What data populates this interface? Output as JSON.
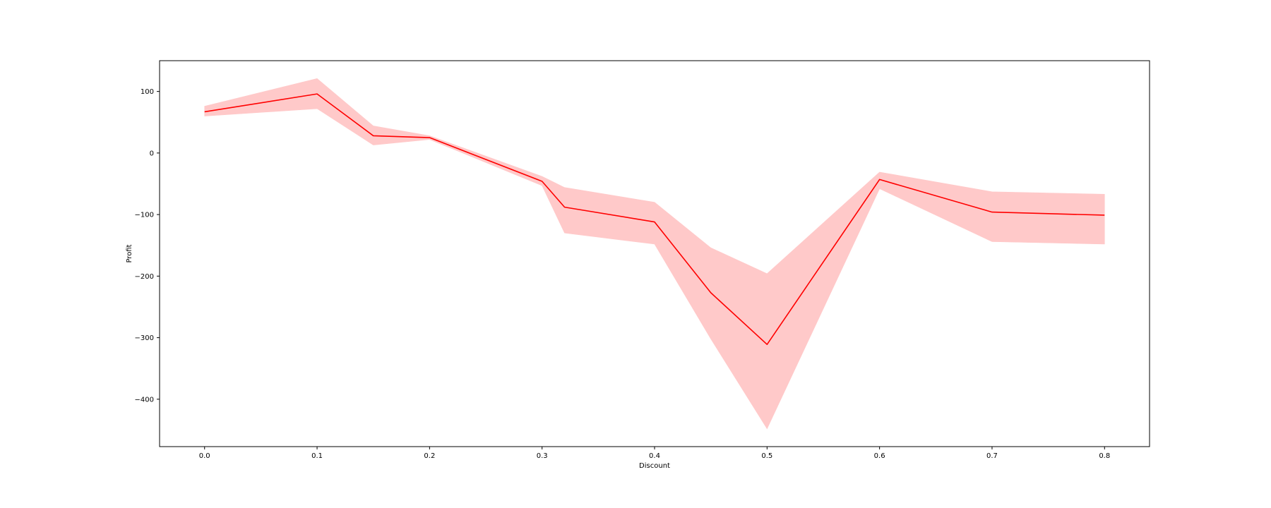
{
  "chart_data": {
    "type": "line",
    "title": "",
    "xlabel": "Discount",
    "ylabel": "Profit",
    "xlim": [
      -0.04,
      0.84
    ],
    "ylim": [
      -477,
      150
    ],
    "xticks": [
      0.0,
      0.1,
      0.2,
      0.3,
      0.4,
      0.5,
      0.6,
      0.7,
      0.8
    ],
    "xtick_labels": [
      "0.0",
      "0.1",
      "0.2",
      "0.3",
      "0.4",
      "0.5",
      "0.6",
      "0.7",
      "0.8"
    ],
    "yticks": [
      100,
      0,
      -100,
      -200,
      -300,
      -400
    ],
    "ytick_labels": [
      "100",
      "0",
      "−100",
      "−200",
      "−300",
      "−400"
    ],
    "grid": false,
    "legend": "none",
    "series": [
      {
        "line_color": "#ff0000",
        "band_color": "#ffc9c9",
        "x": [
          0.0,
          0.1,
          0.15,
          0.2,
          0.3,
          0.32,
          0.4,
          0.45,
          0.5,
          0.6,
          0.7,
          0.8
        ],
        "y": [
          67,
          96,
          28,
          25,
          -46,
          -88,
          -112,
          -227,
          -311,
          -43,
          -96,
          -101
        ],
        "lower": [
          60,
          72,
          13,
          22,
          -53,
          -130,
          -148,
          -302,
          -448,
          -58,
          -144,
          -148
        ],
        "upper": [
          76,
          121,
          44,
          28,
          -38,
          -56,
          -80,
          -154,
          -196,
          -31,
          -63,
          -67
        ]
      }
    ]
  }
}
